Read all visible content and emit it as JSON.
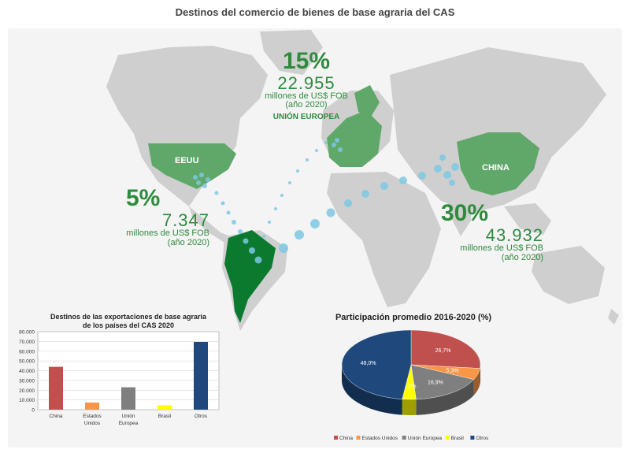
{
  "page": {
    "title": "Destinos del comercio de bienes de base agraria del CAS"
  },
  "map_labels": {
    "usa": "EEUU",
    "china": "CHINA"
  },
  "stats": {
    "eu": {
      "percent": "15%",
      "amount": "22.955",
      "unit": "millones de US$ FOB",
      "year": "(año 2020)",
      "region": "UNIÓN EUROPEA"
    },
    "usa": {
      "percent": "5%",
      "amount": "7.347",
      "unit": "millones de US$ FOB",
      "year": "(año 2020)"
    },
    "china": {
      "percent": "30%",
      "amount": "43.932",
      "unit": "millones de US$ FOB",
      "year": "(año 2020)"
    }
  },
  "colors": {
    "green": "#2e8b3e",
    "land": "#cfcfcf",
    "highlight": "#5fa86a",
    "dots": "#7ec8e3"
  },
  "chart_data": [
    {
      "type": "bar",
      "title": "Destinos de las exportaciones de base agraria de los países del CAS 2020",
      "categories": [
        "China",
        "Estados Unidos",
        "Unión Europea",
        "Brasil",
        "Otros"
      ],
      "category_lines": [
        [
          "China"
        ],
        [
          "Estados",
          "Unidos"
        ],
        [
          "Unión",
          "Europea"
        ],
        [
          "Brasil"
        ],
        [
          "Otros"
        ]
      ],
      "values": [
        43932,
        7347,
        22955,
        4500,
        69500
      ],
      "colors": [
        "#c0504d",
        "#f79646",
        "#7f7f7f",
        "#ffff00",
        "#1f497d"
      ],
      "ylim": [
        0,
        80000
      ],
      "yticks": [
        "0",
        "10.000",
        "20.000",
        "30.000",
        "40.000",
        "50.000",
        "60.000",
        "70.000",
        "80.000"
      ],
      "grid": true
    },
    {
      "type": "pie",
      "title": "Participación promedio 2016-2020 (%)",
      "slices": [
        {
          "name": "China",
          "value": 26.7,
          "label": "26,7%",
          "color": "#c0504d"
        },
        {
          "name": "Estados Unidos",
          "value": 5.3,
          "label": "5,3%",
          "color": "#f79646"
        },
        {
          "name": "Unión Europea",
          "value": 16.9,
          "label": "16,9%",
          "color": "#7f7f7f"
        },
        {
          "name": "Brasil",
          "value": 3.2,
          "label": "3,2%",
          "color": "#ffff00"
        },
        {
          "name": "Otros",
          "value": 48.0,
          "label": "48,0%",
          "color": "#1f497d"
        }
      ],
      "legend": "bottom"
    }
  ]
}
